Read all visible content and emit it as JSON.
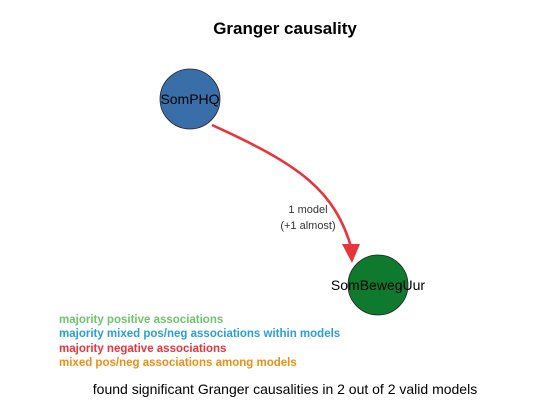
{
  "title": "Granger causality",
  "nodes": [
    {
      "id": "SomPHQ",
      "label": "SomPHQ",
      "color": "#3a6ea8"
    },
    {
      "id": "SomBewegUur",
      "label": "SomBewegUur",
      "color": "#0f7a2e"
    }
  ],
  "edge": {
    "from": "SomPHQ",
    "to": "SomBewegUur",
    "color": "#e8343c",
    "label_line1": "1 model",
    "label_line2": "(+1 almost)"
  },
  "legend": [
    {
      "text": "majority positive associations",
      "color": "#6cc56c"
    },
    {
      "text": "majority mixed pos/neg associations within models",
      "color": "#2a9fd6"
    },
    {
      "text": "majority negative associations",
      "color": "#e8343c"
    },
    {
      "text": "mixed pos/neg associations among models",
      "color": "#e8901a"
    }
  ],
  "footer": "found significant Granger causalities in 2 out of 2 valid models"
}
